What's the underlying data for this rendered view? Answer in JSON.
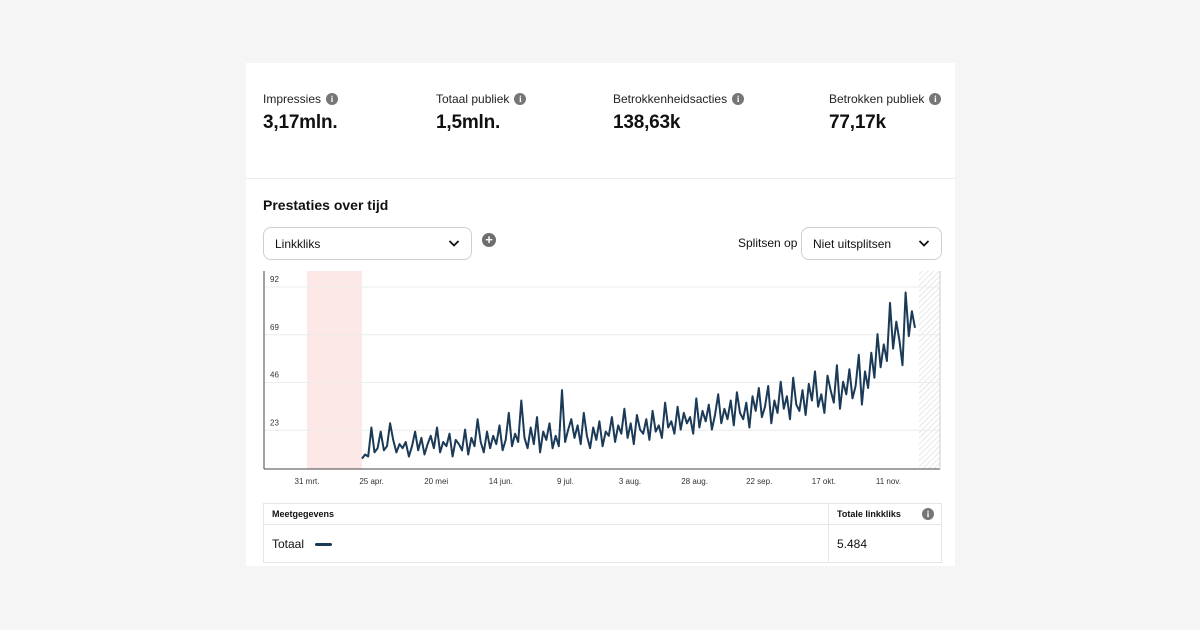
{
  "stats": [
    {
      "label": "Impressies",
      "value": "3,17mln."
    },
    {
      "label": "Totaal publiek",
      "value": "1,5mln."
    },
    {
      "label": "Betrokkenheidsacties",
      "value": "138,63k"
    },
    {
      "label": "Betrokken publiek",
      "value": "77,17k"
    }
  ],
  "section": {
    "title": "Prestaties over tijd"
  },
  "metric_select": {
    "value": "Linkkliks"
  },
  "split": {
    "label": "Splitsen op",
    "value": "Niet uitsplitsen"
  },
  "colors": {
    "line": "#1b3a57",
    "highlight": "#fde8e8",
    "grid": "#ececec"
  },
  "chart_data": {
    "type": "line",
    "ylim": [
      0,
      92
    ],
    "y_ticks": [
      "92",
      "69",
      "46",
      "23"
    ],
    "x_ticks": [
      "31 mrt.",
      "25 apr.",
      "20 mei",
      "14 jun.",
      "9 jul.",
      "3 aug.",
      "28 aug.",
      "22 sep.",
      "17 okt.",
      "11 nov."
    ],
    "series": [
      {
        "values": [
          5,
          7,
          6,
          20,
          8,
          10,
          18,
          9,
          11,
          22,
          14,
          8,
          12,
          10,
          13,
          6,
          11,
          18,
          9,
          15,
          7,
          12,
          16,
          10,
          20,
          8,
          13,
          11,
          17,
          6,
          14,
          12,
          9,
          19,
          7,
          15,
          11,
          24,
          13,
          8,
          18,
          10,
          16,
          12,
          21,
          9,
          14,
          27,
          11,
          17,
          13,
          33,
          15,
          10,
          20,
          12,
          25,
          8,
          18,
          14,
          22,
          10,
          16,
          11,
          38,
          13,
          19,
          24,
          15,
          21,
          12,
          27,
          16,
          10,
          20,
          14,
          23,
          11,
          18,
          16,
          25,
          13,
          21,
          17,
          29,
          15,
          22,
          12,
          26,
          19,
          17,
          24,
          14,
          28,
          18,
          21,
          15,
          32,
          20,
          23,
          17,
          30,
          19,
          27,
          22,
          25,
          17,
          34,
          20,
          28,
          23,
          31,
          19,
          26,
          36,
          22,
          29,
          24,
          33,
          21,
          37,
          27,
          24,
          32,
          20,
          35,
          28,
          39,
          25,
          30,
          40,
          22,
          33,
          27,
          42,
          29,
          35,
          24,
          44,
          31,
          28,
          38,
          26,
          41,
          33,
          47,
          30,
          36,
          27,
          45,
          38,
          32,
          50,
          29,
          42,
          36,
          48,
          34,
          40,
          55,
          31,
          47,
          39,
          56,
          44,
          65,
          49,
          60,
          52,
          80,
          58,
          71,
          62,
          50,
          85,
          64,
          76,
          68
        ]
      }
    ]
  },
  "table": {
    "header_left": "Meetgegevens",
    "header_right": "Totale linkkliks",
    "row_label": "Totaal",
    "row_value": "5.484"
  }
}
